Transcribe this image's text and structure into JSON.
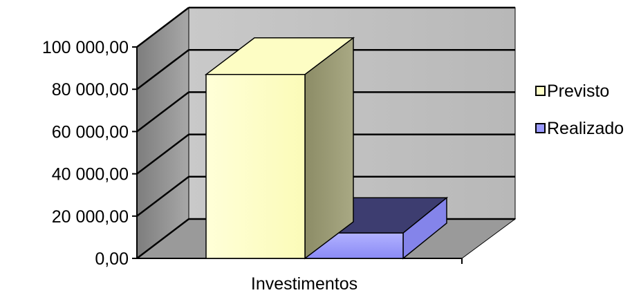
{
  "chart_data": {
    "type": "bar",
    "style": "3d-column",
    "categories": [
      "Investimentos"
    ],
    "series": [
      {
        "name": "Previsto",
        "values": [
          87000
        ],
        "color": "#ffffc8"
      },
      {
        "name": "Realizado",
        "values": [
          12000
        ],
        "color": "#9999ff"
      }
    ],
    "ylim": [
      0,
      100000
    ],
    "y_ticks": [
      0,
      20000,
      40000,
      60000,
      80000,
      100000
    ],
    "y_tick_labels": [
      "0,00",
      "20 000,00",
      "40 000,00",
      "60 000,00",
      "80 000,00",
      "100 000,00"
    ],
    "grid": true,
    "legend": "right",
    "colors": {
      "wall": "#c0c0c0",
      "floor": "#9a9a9a",
      "gridline": "#000000"
    }
  }
}
